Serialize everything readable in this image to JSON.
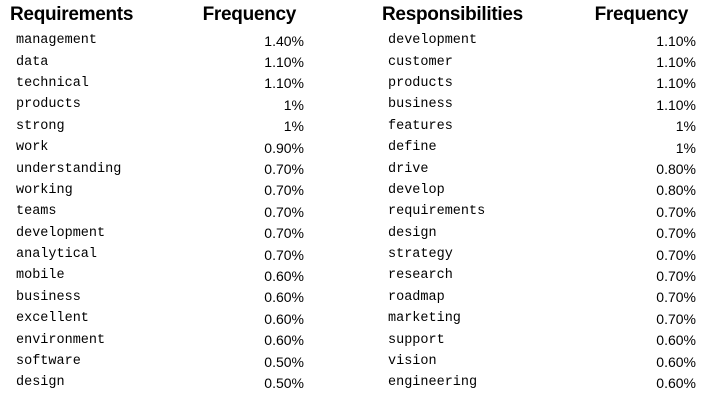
{
  "requirements_table": {
    "headers": {
      "word": "Requirements",
      "frequency": "Frequency"
    },
    "rows": [
      {
        "word": "management",
        "frequency": "1.40%"
      },
      {
        "word": "data",
        "frequency": "1.10%"
      },
      {
        "word": "technical",
        "frequency": "1.10%"
      },
      {
        "word": "products",
        "frequency": "1%"
      },
      {
        "word": "strong",
        "frequency": "1%"
      },
      {
        "word": "work",
        "frequency": "0.90%"
      },
      {
        "word": "understanding",
        "frequency": "0.70%"
      },
      {
        "word": "working",
        "frequency": "0.70%"
      },
      {
        "word": "teams",
        "frequency": "0.70%"
      },
      {
        "word": "development",
        "frequency": "0.70%"
      },
      {
        "word": "analytical",
        "frequency": "0.70%"
      },
      {
        "word": "mobile",
        "frequency": "0.60%"
      },
      {
        "word": "business",
        "frequency": "0.60%"
      },
      {
        "word": "excellent",
        "frequency": "0.60%"
      },
      {
        "word": "environment",
        "frequency": "0.60%"
      },
      {
        "word": "software",
        "frequency": "0.50%"
      },
      {
        "word": "design",
        "frequency": "0.50%"
      }
    ]
  },
  "responsibilities_table": {
    "headers": {
      "word": "Responsibilities",
      "frequency": "Frequency"
    },
    "rows": [
      {
        "word": "development",
        "frequency": "1.10%"
      },
      {
        "word": "customer",
        "frequency": "1.10%"
      },
      {
        "word": "products",
        "frequency": "1.10%"
      },
      {
        "word": "business",
        "frequency": "1.10%"
      },
      {
        "word": "features",
        "frequency": "1%"
      },
      {
        "word": "define",
        "frequency": "1%"
      },
      {
        "word": "drive",
        "frequency": "0.80%"
      },
      {
        "word": "develop",
        "frequency": "0.80%"
      },
      {
        "word": "requirements",
        "frequency": "0.70%"
      },
      {
        "word": "design",
        "frequency": "0.70%"
      },
      {
        "word": "strategy",
        "frequency": "0.70%"
      },
      {
        "word": "research",
        "frequency": "0.70%"
      },
      {
        "word": "roadmap",
        "frequency": "0.70%"
      },
      {
        "word": "marketing",
        "frequency": "0.70%"
      },
      {
        "word": "support",
        "frequency": "0.60%"
      },
      {
        "word": "vision",
        "frequency": "0.60%"
      },
      {
        "word": "engineering",
        "frequency": "0.60%"
      }
    ]
  }
}
